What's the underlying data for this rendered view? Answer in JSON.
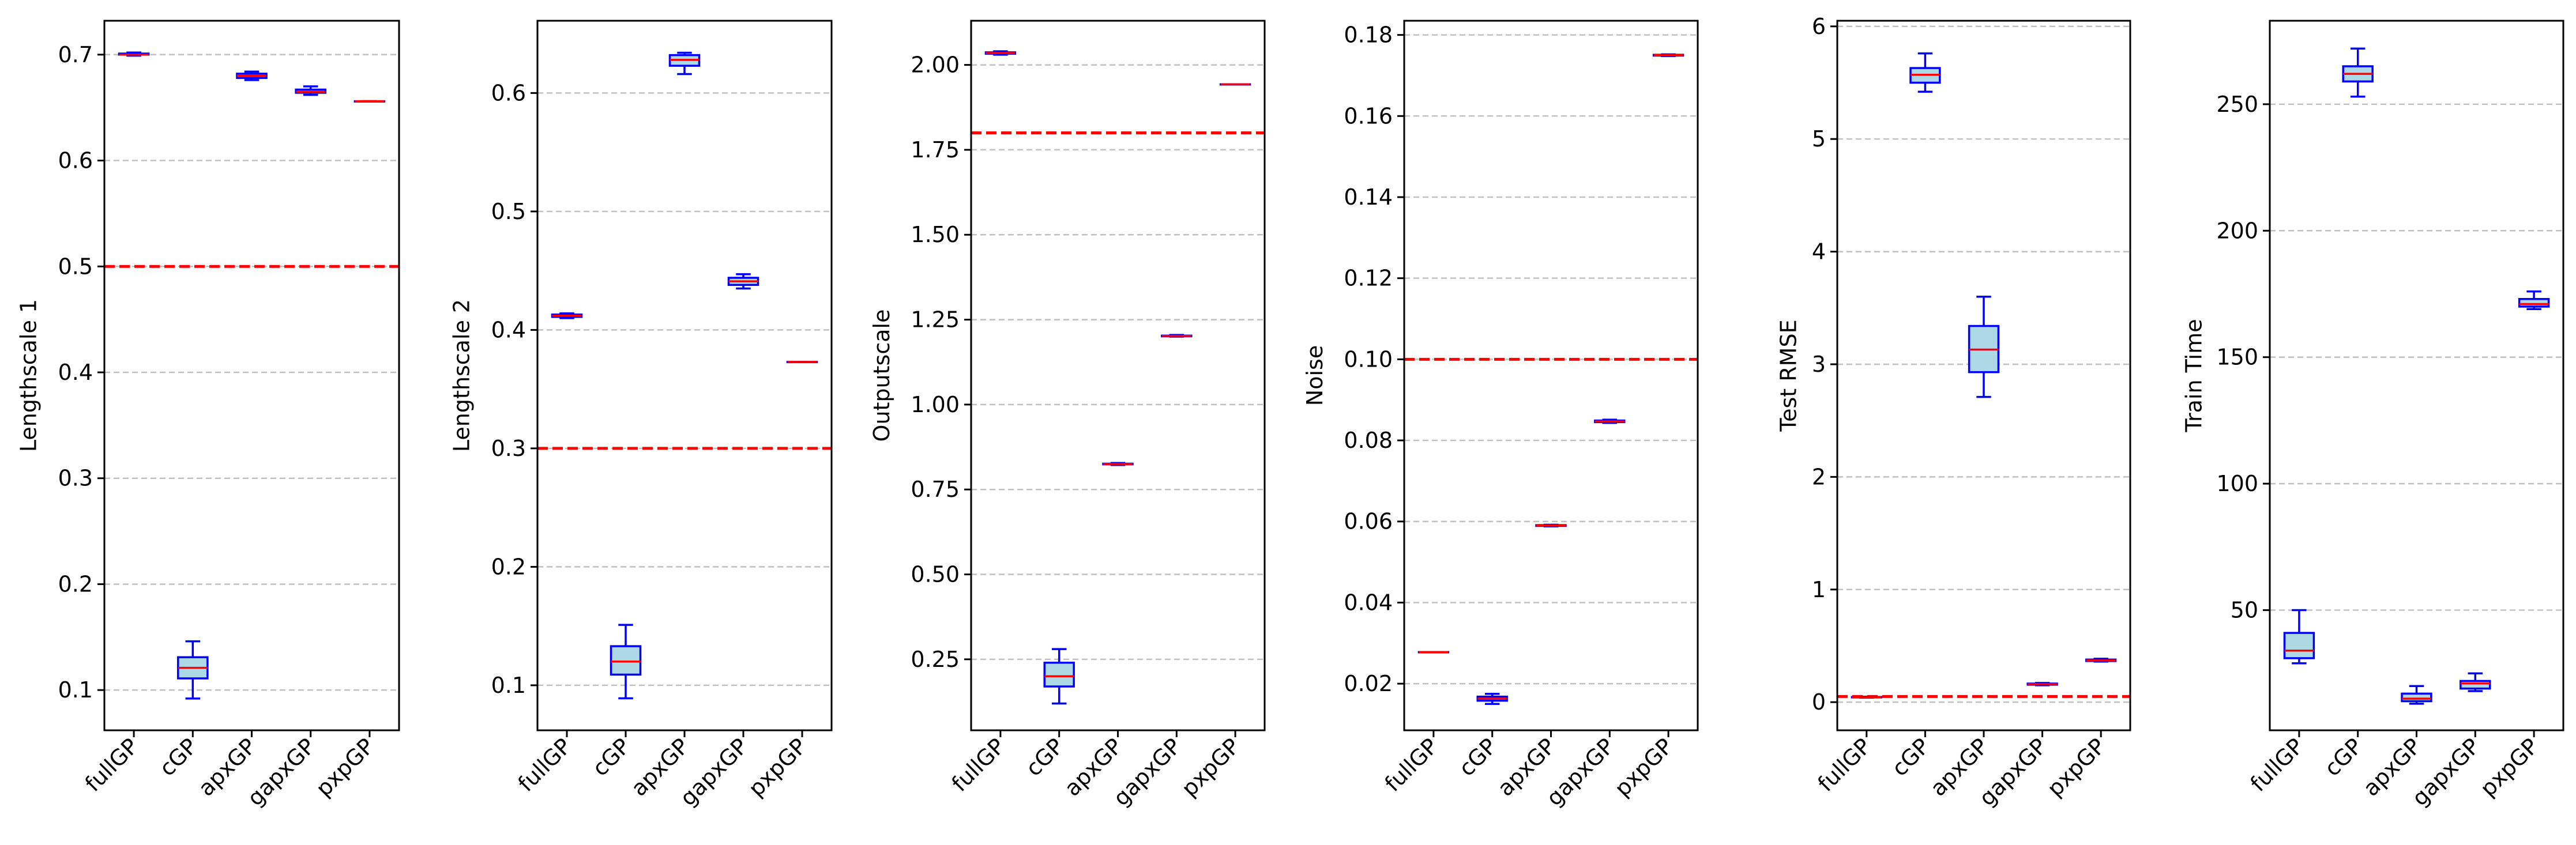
{
  "figure": {
    "layout": "1x6 subplots",
    "shared_categories": [
      "fullGP",
      "cGP",
      "apxGP",
      "gapxGP",
      "pxpGP"
    ]
  },
  "styles": {
    "box_edge": "#0000ff",
    "box_fill": "#add8e6",
    "median": "#ff0000",
    "reference_line": "#ff0000",
    "grid": "#c0c0c0"
  },
  "chart_data": [
    {
      "type": "box",
      "title": "",
      "xlabel": "",
      "ylabel": "Lengthscale 1",
      "categories": [
        "fullGP",
        "cGP",
        "apxGP",
        "gapxGP",
        "pxpGP"
      ],
      "ylim": [
        0.062,
        0.732
      ],
      "yticks": [
        0.1,
        0.2,
        0.3,
        0.4,
        0.5,
        0.6,
        0.7
      ],
      "ytick_labels": [
        "0.1",
        "0.2",
        "0.3",
        "0.4",
        "0.5",
        "0.6",
        "0.7"
      ],
      "reference_line": 0.5,
      "grid": "y-dashed",
      "boxes": [
        {
          "min": 0.699,
          "q1": 0.7,
          "median": 0.7,
          "q3": 0.701,
          "max": 0.702
        },
        {
          "min": 0.092,
          "q1": 0.111,
          "median": 0.121,
          "q3": 0.131,
          "max": 0.146
        },
        {
          "min": 0.676,
          "q1": 0.678,
          "median": 0.68,
          "q3": 0.682,
          "max": 0.684
        },
        {
          "min": 0.662,
          "q1": 0.664,
          "median": 0.665,
          "q3": 0.667,
          "max": 0.67
        },
        {
          "min": 0.656,
          "q1": 0.656,
          "median": 0.656,
          "q3": 0.656,
          "max": 0.656
        }
      ]
    },
    {
      "type": "box",
      "title": "",
      "xlabel": "",
      "ylabel": "Lengthscale 2",
      "categories": [
        "fullGP",
        "cGP",
        "apxGP",
        "gapxGP",
        "pxpGP"
      ],
      "ylim": [
        0.062,
        0.661
      ],
      "yticks": [
        0.1,
        0.2,
        0.3,
        0.4,
        0.5,
        0.6
      ],
      "ytick_labels": [
        "0.1",
        "0.2",
        "0.3",
        "0.4",
        "0.5",
        "0.6"
      ],
      "reference_line": 0.3,
      "grid": "y-dashed",
      "boxes": [
        {
          "min": 0.41,
          "q1": 0.411,
          "median": 0.412,
          "q3": 0.413,
          "max": 0.414
        },
        {
          "min": 0.089,
          "q1": 0.109,
          "median": 0.12,
          "q3": 0.133,
          "max": 0.151
        },
        {
          "min": 0.616,
          "q1": 0.623,
          "median": 0.628,
          "q3": 0.632,
          "max": 0.634
        },
        {
          "min": 0.435,
          "q1": 0.438,
          "median": 0.441,
          "q3": 0.444,
          "max": 0.447
        },
        {
          "min": 0.373,
          "q1": 0.373,
          "median": 0.373,
          "q3": 0.373,
          "max": 0.373
        }
      ]
    },
    {
      "type": "box",
      "title": "",
      "xlabel": "",
      "ylabel": "Outputscale",
      "categories": [
        "fullGP",
        "cGP",
        "apxGP",
        "gapxGP",
        "pxpGP"
      ],
      "ylim": [
        0.041,
        2.13
      ],
      "yticks": [
        0.25,
        0.5,
        0.75,
        1.0,
        1.25,
        1.5,
        1.75,
        2.0
      ],
      "ytick_labels": [
        "0.25",
        "0.50",
        "0.75",
        "1.00",
        "1.25",
        "1.50",
        "1.75",
        "2.00"
      ],
      "reference_line": 1.8,
      "grid": "y-dashed",
      "boxes": [
        {
          "min": 2.03,
          "q1": 2.033,
          "median": 2.035,
          "q3": 2.037,
          "max": 2.04
        },
        {
          "min": 0.12,
          "q1": 0.17,
          "median": 0.2,
          "q3": 0.24,
          "max": 0.28
        },
        {
          "min": 0.822,
          "q1": 0.824,
          "median": 0.825,
          "q3": 0.826,
          "max": 0.828
        },
        {
          "min": 1.2,
          "q1": 1.201,
          "median": 1.202,
          "q3": 1.203,
          "max": 1.205
        },
        {
          "min": 1.943,
          "q1": 1.943,
          "median": 1.943,
          "q3": 1.943,
          "max": 1.943
        }
      ]
    },
    {
      "type": "box",
      "title": "",
      "xlabel": "",
      "ylabel": "Noise",
      "categories": [
        "fullGP",
        "cGP",
        "apxGP",
        "gapxGP",
        "pxpGP"
      ],
      "ylim": [
        0.0085,
        0.1835
      ],
      "yticks": [
        0.02,
        0.04,
        0.06,
        0.08,
        0.1,
        0.12,
        0.14,
        0.16,
        0.18
      ],
      "ytick_labels": [
        "0.02",
        "0.04",
        "0.06",
        "0.08",
        "0.10",
        "0.12",
        "0.14",
        "0.16",
        "0.18"
      ],
      "reference_line": 0.1,
      "grid": "y-dashed",
      "boxes": [
        {
          "min": 0.0278,
          "q1": 0.0278,
          "median": 0.0278,
          "q3": 0.0278,
          "max": 0.0278
        },
        {
          "min": 0.015,
          "q1": 0.0158,
          "median": 0.0163,
          "q3": 0.0168,
          "max": 0.0175
        },
        {
          "min": 0.0588,
          "q1": 0.0589,
          "median": 0.059,
          "q3": 0.0591,
          "max": 0.0592
        },
        {
          "min": 0.0843,
          "q1": 0.0845,
          "median": 0.0847,
          "q3": 0.0849,
          "max": 0.0851
        },
        {
          "min": 0.1748,
          "q1": 0.1749,
          "median": 0.175,
          "q3": 0.1751,
          "max": 0.1752
        }
      ]
    },
    {
      "type": "box",
      "title": "",
      "xlabel": "",
      "ylabel": "Test RMSE",
      "categories": [
        "fullGP",
        "cGP",
        "apxGP",
        "gapxGP",
        "pxpGP"
      ],
      "ylim": [
        -0.25,
        6.05
      ],
      "yticks": [
        0,
        1,
        2,
        3,
        4,
        5,
        6
      ],
      "ytick_labels": [
        "0",
        "1",
        "2",
        "3",
        "4",
        "5",
        "6"
      ],
      "reference_line": 0.05,
      "grid": "y-dashed",
      "boxes": [
        {
          "min": 0.04,
          "q1": 0.042,
          "median": 0.044,
          "q3": 0.046,
          "max": 0.048
        },
        {
          "min": 5.42,
          "q1": 5.5,
          "median": 5.57,
          "q3": 5.63,
          "max": 5.76
        },
        {
          "min": 2.71,
          "q1": 2.93,
          "median": 3.13,
          "q3": 3.34,
          "max": 3.6
        },
        {
          "min": 0.15,
          "q1": 0.155,
          "median": 0.16,
          "q3": 0.165,
          "max": 0.17
        },
        {
          "min": 0.36,
          "q1": 0.365,
          "median": 0.37,
          "q3": 0.378,
          "max": 0.385
        }
      ]
    },
    {
      "type": "box",
      "title": "",
      "xlabel": "",
      "ylabel": "Train Time",
      "categories": [
        "fullGP",
        "cGP",
        "apxGP",
        "gapxGP",
        "pxpGP"
      ],
      "ylim": [
        2.5,
        283
      ],
      "yticks": [
        50,
        100,
        150,
        200,
        250
      ],
      "ytick_labels": [
        "50",
        "100",
        "150",
        "200",
        "250"
      ],
      "reference_line": null,
      "grid": "y-dashed",
      "boxes": [
        {
          "min": 29,
          "q1": 31,
          "median": 34,
          "q3": 41,
          "max": 50
        },
        {
          "min": 253,
          "q1": 259,
          "median": 262,
          "q3": 265,
          "max": 272
        },
        {
          "min": 13,
          "q1": 14,
          "median": 15,
          "q3": 17,
          "max": 20
        },
        {
          "min": 18,
          "q1": 19,
          "median": 21,
          "q3": 22,
          "max": 25
        },
        {
          "min": 169,
          "q1": 170,
          "median": 171,
          "q3": 173,
          "max": 176
        }
      ]
    }
  ]
}
